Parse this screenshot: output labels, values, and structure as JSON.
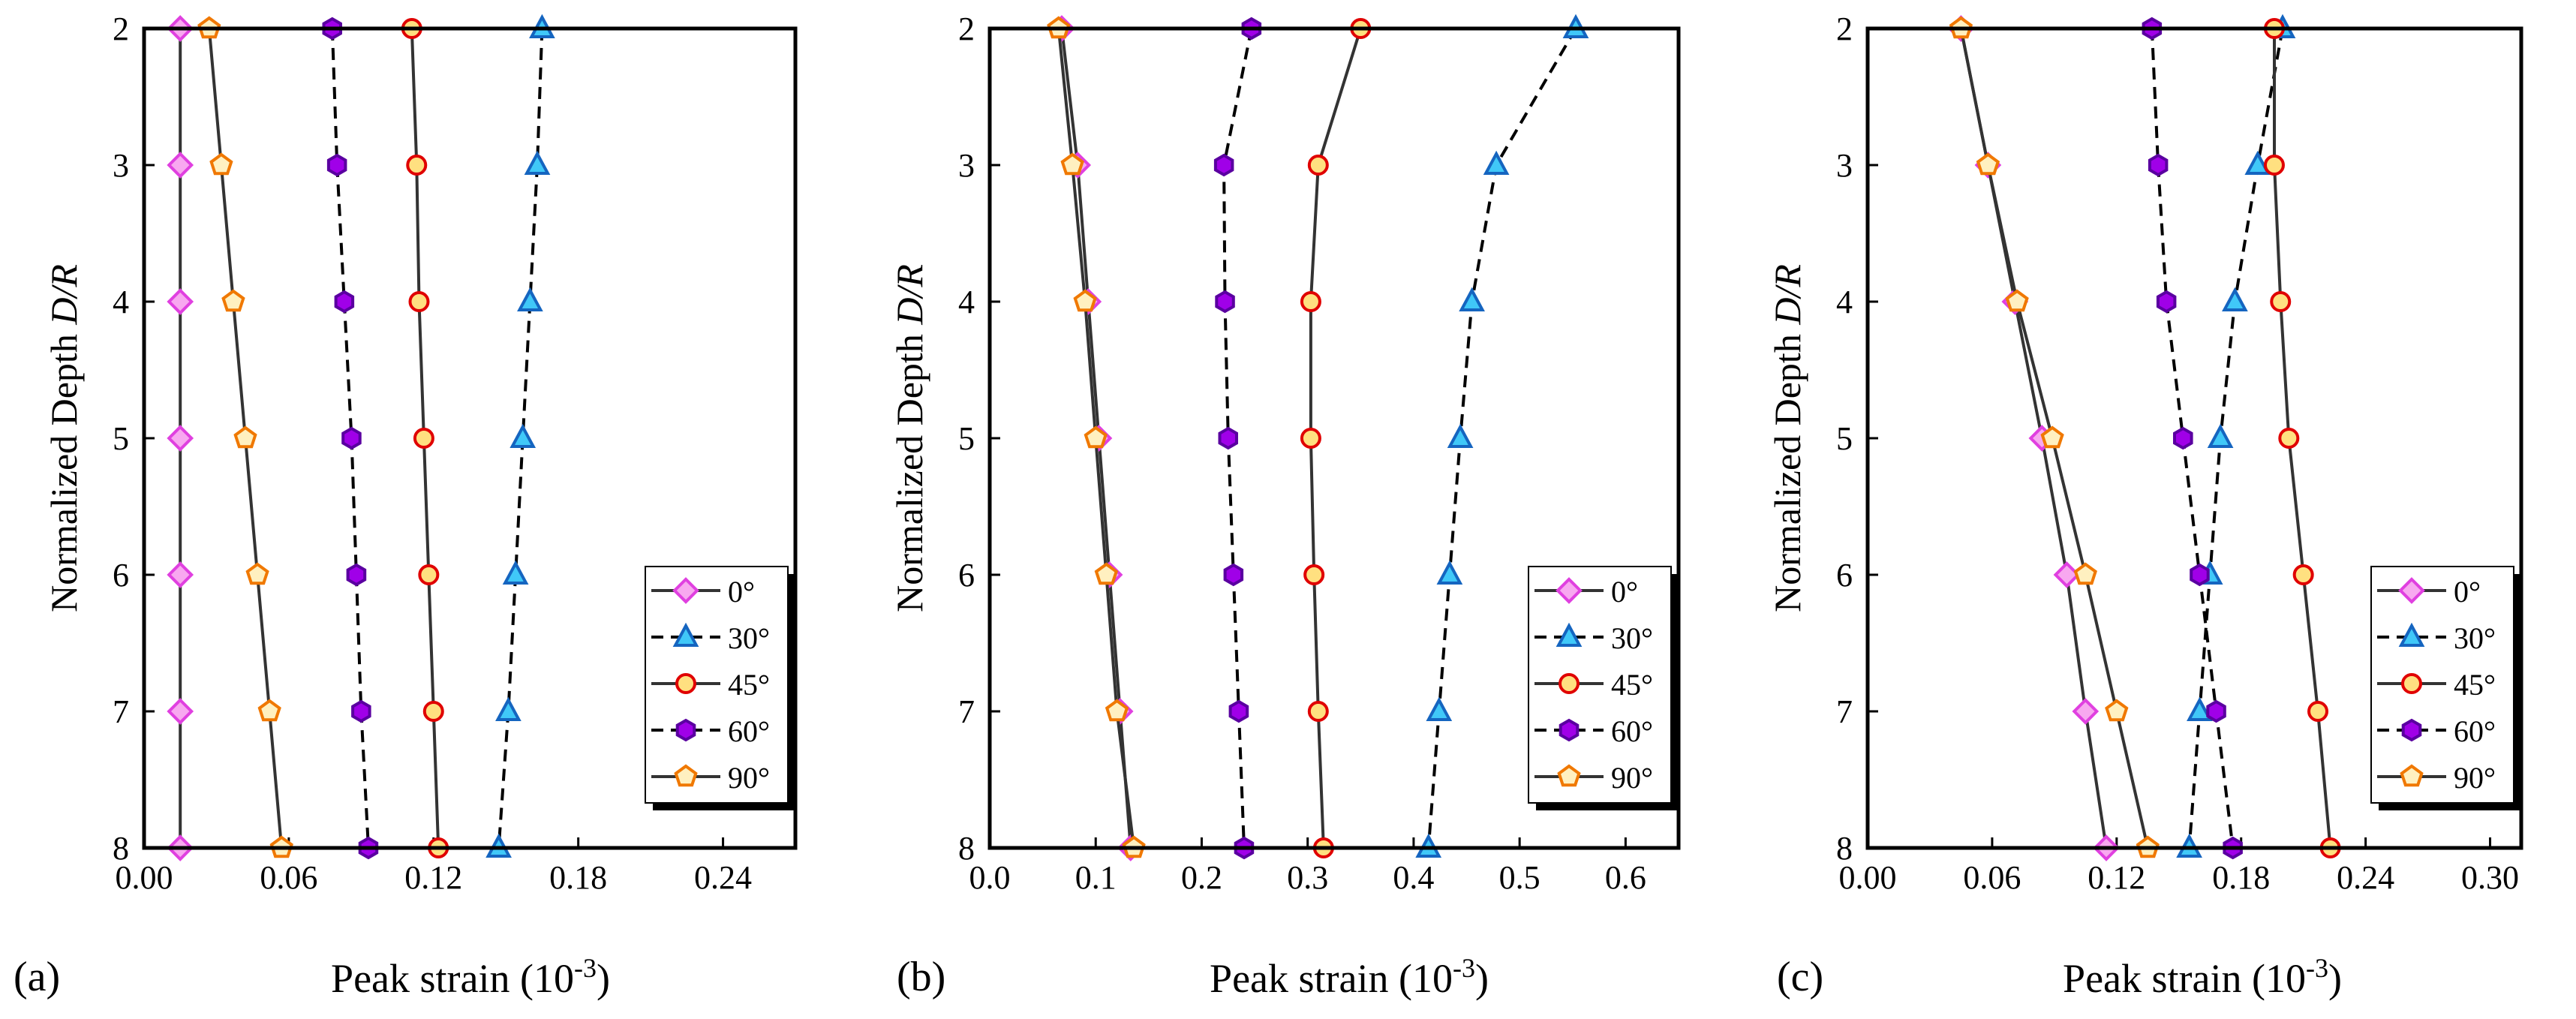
{
  "chart_data": [
    {
      "panel_label": "(a)",
      "type": "line",
      "orientation": "depth-profile",
      "xlabel_main": "Peak strain (10",
      "xlabel_sup": "-3",
      "xlabel_end": ")",
      "ylabel_main": "Normalized Depth ",
      "ylabel_italic": "D/R",
      "xlim": [
        0,
        0.27
      ],
      "xticks": [
        0,
        0.06,
        0.12,
        0.18,
        0.24
      ],
      "xtick_labels": [
        "0.00",
        "0.06",
        "0.12",
        "0.18",
        "0.24"
      ],
      "ylim": [
        2,
        8
      ],
      "yticks": [
        2,
        3,
        4,
        5,
        6,
        7,
        8
      ],
      "ytick_labels": [
        "2",
        "3",
        "4",
        "5",
        "6",
        "7",
        "8"
      ],
      "depth": [
        2,
        3,
        4,
        5,
        6,
        7,
        8
      ],
      "legend_position": "bottom-right",
      "series": [
        {
          "name": "0°",
          "marker": "diamond",
          "line": "solid",
          "color": "#E040E0",
          "fill": "#F8A8F0",
          "values": [
            0.015,
            0.015,
            0.015,
            0.015,
            0.015,
            0.015,
            0.015
          ]
        },
        {
          "name": "30°",
          "marker": "triangle",
          "line": "dashed",
          "color": "#1565C0",
          "fill": "#40C8F8",
          "values": [
            0.165,
            0.163,
            0.16,
            0.157,
            0.154,
            0.151,
            0.147
          ]
        },
        {
          "name": "45°",
          "marker": "circle",
          "line": "solid",
          "color": "#E00000",
          "fill": "#FFE080",
          "values": [
            0.111,
            0.113,
            0.114,
            0.116,
            0.118,
            0.12,
            0.122
          ]
        },
        {
          "name": "60°",
          "marker": "hexagon",
          "line": "dashed",
          "color": "#5A00A0",
          "fill": "#A000E8",
          "values": [
            0.078,
            0.08,
            0.083,
            0.086,
            0.088,
            0.09,
            0.093
          ]
        },
        {
          "name": "90°",
          "marker": "pentagon",
          "line": "solid",
          "color": "#F07800",
          "fill": "#FFF0C0",
          "values": [
            0.027,
            0.032,
            0.037,
            0.042,
            0.047,
            0.052,
            0.057
          ]
        }
      ]
    },
    {
      "panel_label": "(b)",
      "type": "line",
      "orientation": "depth-profile",
      "xlabel_main": "Peak strain (10",
      "xlabel_sup": "-3",
      "xlabel_end": ")",
      "ylabel_main": "Normalized Depth ",
      "ylabel_italic": "D/R",
      "xlim": [
        0,
        0.65
      ],
      "xticks": [
        0,
        0.1,
        0.2,
        0.3,
        0.4,
        0.5,
        0.6
      ],
      "xtick_labels": [
        "0.0",
        "0.1",
        "0.2",
        "0.3",
        "0.4",
        "0.5",
        "0.6"
      ],
      "ylim": [
        2,
        8
      ],
      "yticks": [
        2,
        3,
        4,
        5,
        6,
        7,
        8
      ],
      "ytick_labels": [
        "2",
        "3",
        "4",
        "5",
        "6",
        "7",
        "8"
      ],
      "depth": [
        2,
        3,
        4,
        5,
        6,
        7,
        8
      ],
      "legend_position": "bottom-right",
      "series": [
        {
          "name": "0°",
          "marker": "diamond",
          "line": "solid",
          "color": "#E040E0",
          "fill": "#F8A8F0",
          "values": [
            0.068,
            0.083,
            0.093,
            0.103,
            0.113,
            0.123,
            0.133
          ]
        },
        {
          "name": "30°",
          "marker": "triangle",
          "line": "dashed",
          "color": "#1565C0",
          "fill": "#40C8F8",
          "values": [
            0.553,
            0.478,
            0.455,
            0.444,
            0.434,
            0.424,
            0.414
          ]
        },
        {
          "name": "45°",
          "marker": "circle",
          "line": "solid",
          "color": "#E00000",
          "fill": "#FFE080",
          "values": [
            0.35,
            0.31,
            0.303,
            0.303,
            0.306,
            0.31,
            0.315
          ]
        },
        {
          "name": "60°",
          "marker": "hexagon",
          "line": "dashed",
          "color": "#5A00A0",
          "fill": "#A000E8",
          "values": [
            0.247,
            0.221,
            0.222,
            0.225,
            0.23,
            0.235,
            0.24
          ]
        },
        {
          "name": "90°",
          "marker": "pentagon",
          "line": "solid",
          "color": "#F07800",
          "fill": "#FFF0C0",
          "values": [
            0.065,
            0.078,
            0.09,
            0.1,
            0.11,
            0.12,
            0.136
          ]
        }
      ]
    },
    {
      "panel_label": "(c)",
      "type": "line",
      "orientation": "depth-profile",
      "xlabel_main": "Peak strain (10",
      "xlabel_sup": "-3",
      "xlabel_end": ")",
      "ylabel_main": "Normalized Depth ",
      "ylabel_italic": "D/R",
      "xlim": [
        0,
        0.315
      ],
      "xticks": [
        0,
        0.06,
        0.12,
        0.18,
        0.24,
        0.3
      ],
      "xtick_labels": [
        "0.00",
        "0.06",
        "0.12",
        "0.18",
        "0.24",
        "0.30"
      ],
      "ylim": [
        2,
        8
      ],
      "yticks": [
        2,
        3,
        4,
        5,
        6,
        7,
        8
      ],
      "ytick_labels": [
        "2",
        "3",
        "4",
        "5",
        "6",
        "7",
        "8"
      ],
      "depth": [
        2,
        3,
        4,
        5,
        6,
        7,
        8
      ],
      "legend_position": "bottom-right",
      "series": [
        {
          "name": "0°",
          "marker": "diamond",
          "line": "solid",
          "color": "#E040E0",
          "fill": "#F8A8F0",
          "values": [
            0.045,
            0.058,
            0.071,
            0.084,
            0.096,
            0.105,
            0.115
          ]
        },
        {
          "name": "30°",
          "marker": "triangle",
          "line": "dashed",
          "color": "#1565C0",
          "fill": "#40C8F8",
          "values": [
            0.2,
            0.188,
            0.177,
            0.17,
            0.165,
            0.16,
            0.155
          ]
        },
        {
          "name": "45°",
          "marker": "circle",
          "line": "solid",
          "color": "#E00000",
          "fill": "#FFE080",
          "values": [
            0.196,
            0.196,
            0.199,
            0.203,
            0.21,
            0.217,
            0.223
          ]
        },
        {
          "name": "60°",
          "marker": "hexagon",
          "line": "dashed",
          "color": "#5A00A0",
          "fill": "#A000E8",
          "values": [
            0.137,
            0.14,
            0.144,
            0.152,
            0.16,
            0.168,
            0.176
          ]
        },
        {
          "name": "90°",
          "marker": "pentagon",
          "line": "solid",
          "color": "#F07800",
          "fill": "#FFF0C0",
          "values": [
            0.045,
            0.058,
            0.072,
            0.089,
            0.105,
            0.12,
            0.135
          ]
        }
      ]
    }
  ]
}
